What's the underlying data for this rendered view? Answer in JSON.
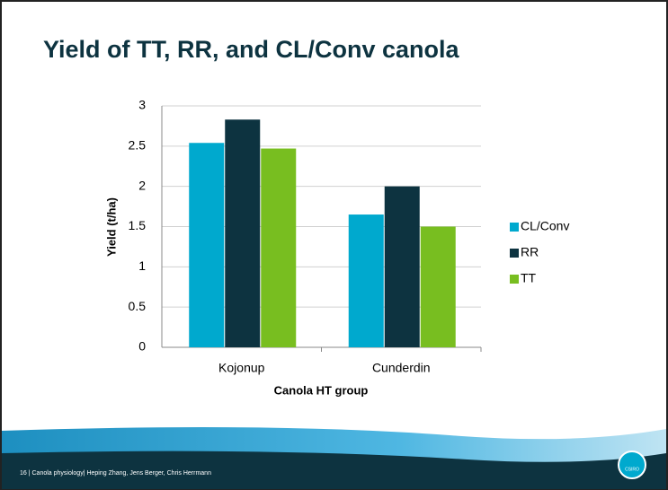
{
  "chart_data": {
    "type": "bar",
    "title": "Yield of TT, RR, and CL/Conv canola",
    "categories": [
      "Kojonup",
      "Cunderdin"
    ],
    "series": [
      {
        "name": "CL/Conv",
        "color": "#00a9ce",
        "values": [
          2.54,
          1.65
        ]
      },
      {
        "name": "RR",
        "color": "#0d3340",
        "values": [
          2.83,
          2.0
        ]
      },
      {
        "name": "TT",
        "color": "#78be20",
        "values": [
          2.47,
          1.5
        ]
      }
    ],
    "ylim": [
      0,
      3
    ],
    "yticks": [
      0,
      0.5,
      1,
      1.5,
      2,
      2.5,
      3
    ],
    "ylabel": "Yield (t/ha)",
    "xlabel": "Canola HT group",
    "grid": true,
    "legend": "right"
  },
  "footer": {
    "text": "16 | Canola physiology| Heping Zhang, Jens Berger, Chris Herrmann",
    "logo": "CSIRO"
  }
}
